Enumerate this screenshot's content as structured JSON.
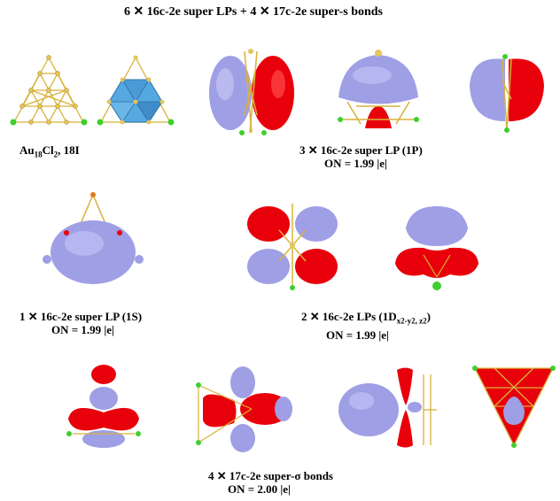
{
  "title": "6 ✕ 16c-2e super LPs + 4 ✕ 17c-2e super-s  bonds",
  "label_cluster": {
    "base": "Au",
    "sub1": "18",
    "mid": "Cl",
    "sub2": "2",
    "tail": ", 18I"
  },
  "label_1p": {
    "line1": "3 ✕ 16c-2e  super LP (1P)",
    "line2": "ON = 1.99 |e|"
  },
  "label_1s": {
    "line1": "1 ✕ 16c-2e super LP (1S)",
    "line2": "ON = 1.99 |e|"
  },
  "label_1d": {
    "pre": "2 ✕ 16c-2e  LPs (1D",
    "sub": "x2-y2, z2",
    "post": ")",
    "line2": "ON = 1.99 |e|"
  },
  "label_sigma": {
    "line1": "4 ✕ 17c-2e  super-σ bonds",
    "line2": "ON = 2.00 |e|"
  },
  "colors": {
    "positive_lobe": "#e8000b",
    "negative_lobe": "#9f9fe6",
    "gold_atom": "#e5c45a",
    "chlorine_atom": "#3ecf2f",
    "bond": "#d9b23a",
    "polyhedron": "#55a8e0"
  }
}
